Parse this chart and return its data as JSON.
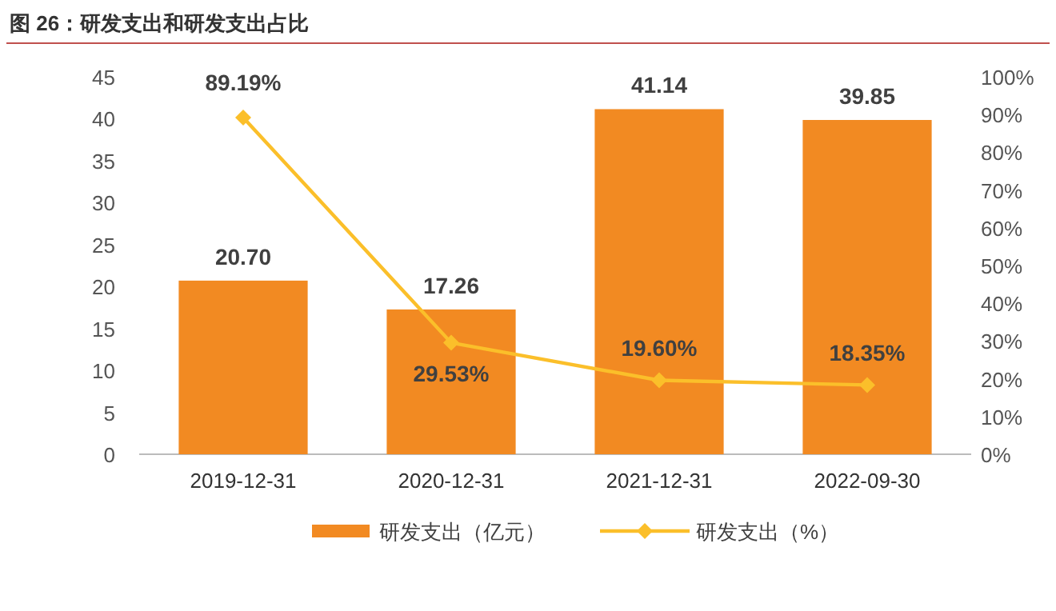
{
  "chart_data": {
    "type": "bar",
    "title": "图 26：研发支出和研发支出占比",
    "categories": [
      "2019-12-31",
      "2020-12-31",
      "2021-12-31",
      "2022-09-30"
    ],
    "series": [
      {
        "name": "研发支出（亿元）",
        "color": "#f28a22",
        "values": [
          20.7,
          17.26,
          41.14,
          39.85
        ],
        "value_labels": [
          "20.70",
          "17.26",
          "41.14",
          "39.85"
        ]
      },
      {
        "name": "研发支出（%）",
        "type": "line",
        "axis": "y2",
        "color": "#fbbf2a",
        "marker": "diamond",
        "values": [
          89.19,
          29.53,
          19.6,
          18.35
        ],
        "value_labels": [
          "89.19%",
          "29.53%",
          "19.60%",
          "18.35%"
        ]
      }
    ],
    "ylim": [
      0,
      45
    ],
    "yticks": [
      0,
      5,
      10,
      15,
      20,
      25,
      30,
      35,
      40,
      45
    ],
    "y2lim": [
      0,
      100
    ],
    "y2ticks": [
      {
        "value": 0,
        "label": "0%"
      },
      {
        "value": 10,
        "label": "10%"
      },
      {
        "value": 20,
        "label": "20%"
      },
      {
        "value": 30,
        "label": "30%"
      },
      {
        "value": 40,
        "label": "40%"
      },
      {
        "value": 50,
        "label": "50%"
      },
      {
        "value": 60,
        "label": "60%"
      },
      {
        "value": 70,
        "label": "70%"
      },
      {
        "value": 80,
        "label": "80%"
      },
      {
        "value": 90,
        "label": "90%"
      },
      {
        "value": 100,
        "label": "100%"
      }
    ],
    "legend": "bottom"
  }
}
